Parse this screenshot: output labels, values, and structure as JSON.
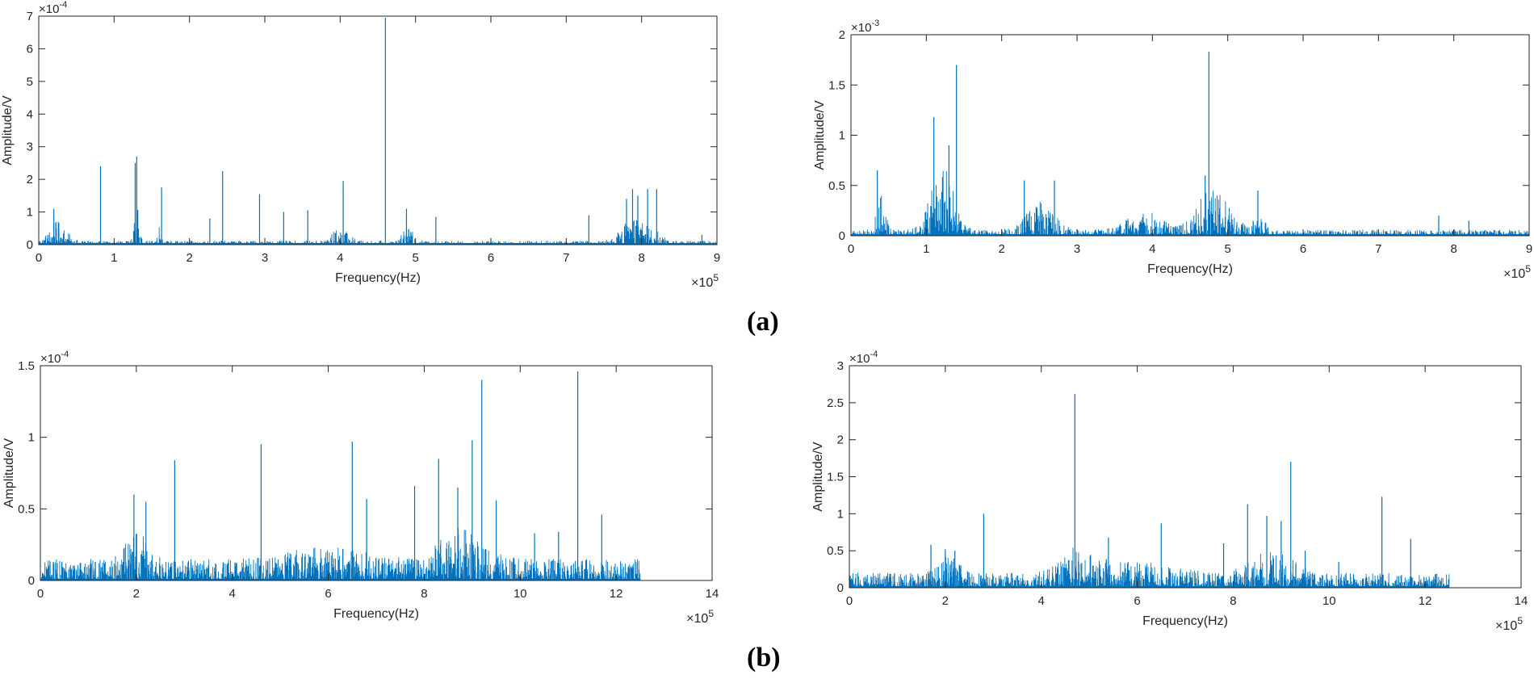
{
  "figure": {
    "label_a": "(a)",
    "label_b": "(b)"
  },
  "chart_data": [
    {
      "id": "a-left",
      "type": "line",
      "xlabel": "Frequency(Hz)",
      "ylabel": "Amplitude/V",
      "xlim": [
        0,
        9
      ],
      "ylim": [
        0,
        7
      ],
      "xticks": [
        0,
        1,
        2,
        3,
        4,
        5,
        6,
        7,
        8,
        9
      ],
      "yticks": [
        0,
        1,
        2,
        3,
        4,
        5,
        6,
        7
      ],
      "x_multiplier": "×10",
      "x_exponent": "5",
      "y_multiplier": "×10",
      "y_exponent": "-4",
      "color": "#0072BD",
      "noise_level": 0.12,
      "noise_extent": 9,
      "bumps": [
        [
          0.25,
          0.6,
          0.15
        ],
        [
          1.3,
          1.2,
          0.04
        ],
        [
          1.6,
          0.5,
          0.04
        ],
        [
          4.0,
          0.4,
          0.15
        ],
        [
          4.9,
          0.4,
          0.1
        ],
        [
          7.9,
          0.8,
          0.2
        ],
        [
          8.2,
          0.4,
          0.1
        ]
      ],
      "peaks": [
        [
          0.2,
          1.1
        ],
        [
          0.82,
          2.4
        ],
        [
          1.28,
          2.5
        ],
        [
          1.3,
          2.7
        ],
        [
          1.63,
          1.75
        ],
        [
          2.27,
          0.8
        ],
        [
          2.44,
          2.25
        ],
        [
          2.93,
          1.55
        ],
        [
          3.25,
          1.0
        ],
        [
          3.57,
          1.05
        ],
        [
          4.04,
          1.95
        ],
        [
          4.6,
          6.95
        ],
        [
          4.88,
          1.1
        ],
        [
          5.27,
          0.85
        ],
        [
          7.3,
          0.9
        ],
        [
          7.8,
          1.4
        ],
        [
          7.88,
          1.7
        ],
        [
          7.95,
          1.5
        ],
        [
          8.08,
          1.7
        ],
        [
          8.2,
          1.7
        ],
        [
          8.8,
          0.3
        ]
      ]
    },
    {
      "id": "a-right",
      "type": "line",
      "xlabel": "Frequency(Hz)",
      "ylabel": "Amplitude/V",
      "xlim": [
        0,
        9
      ],
      "ylim": [
        0,
        2
      ],
      "xticks": [
        0,
        1,
        2,
        3,
        4,
        5,
        6,
        7,
        8,
        9
      ],
      "yticks": [
        0,
        0.5,
        1,
        1.5,
        2
      ],
      "x_multiplier": "×10",
      "x_exponent": "5",
      "y_multiplier": "×10",
      "y_exponent": "-3",
      "color": "#0072BD",
      "noise_level": 0.06,
      "noise_extent": 9,
      "bumps": [
        [
          0.4,
          0.35,
          0.08
        ],
        [
          1.2,
          0.7,
          0.2
        ],
        [
          2.5,
          0.3,
          0.25
        ],
        [
          3.9,
          0.2,
          0.3
        ],
        [
          4.8,
          0.4,
          0.3
        ],
        [
          5.4,
          0.2,
          0.1
        ]
      ],
      "peaks": [
        [
          0.35,
          0.65
        ],
        [
          1.1,
          1.18
        ],
        [
          1.3,
          0.9
        ],
        [
          1.4,
          1.7
        ],
        [
          2.3,
          0.55
        ],
        [
          2.7,
          0.55
        ],
        [
          4.7,
          0.6
        ],
        [
          4.75,
          1.83
        ],
        [
          5.4,
          0.45
        ],
        [
          7.8,
          0.2
        ],
        [
          8.2,
          0.15
        ]
      ]
    },
    {
      "id": "b-left",
      "type": "line",
      "xlabel": "Frequency(Hz)",
      "ylabel": "Amplitude/V",
      "xlim": [
        0,
        14
      ],
      "ylim": [
        0,
        1.5
      ],
      "xticks": [
        0,
        2,
        4,
        6,
        8,
        10,
        12,
        14
      ],
      "yticks": [
        0,
        0.5,
        1,
        1.5
      ],
      "ytick_labels": [
        "0",
        "0.5",
        "1",
        "1.5"
      ],
      "x_multiplier": "×10",
      "x_exponent": "5",
      "y_multiplier": "×10",
      "y_exponent": "-4",
      "color": "#0072BD",
      "noise_level": 0.15,
      "noise_extent": 12.5,
      "bumps": [
        [
          2.0,
          0.2,
          0.3
        ],
        [
          6.0,
          0.1,
          1.0
        ],
        [
          8.8,
          0.25,
          0.6
        ]
      ],
      "peaks": [
        [
          1.95,
          0.6
        ],
        [
          2.2,
          0.55
        ],
        [
          2.8,
          0.84
        ],
        [
          4.6,
          0.95
        ],
        [
          6.5,
          0.97
        ],
        [
          6.8,
          0.57
        ],
        [
          7.8,
          0.66
        ],
        [
          8.3,
          0.85
        ],
        [
          8.7,
          0.65
        ],
        [
          9.0,
          0.98
        ],
        [
          9.2,
          1.4
        ],
        [
          9.5,
          0.56
        ],
        [
          10.3,
          0.33
        ],
        [
          10.8,
          0.34
        ],
        [
          11.2,
          1.46
        ],
        [
          11.7,
          0.46
        ]
      ]
    },
    {
      "id": "b-right",
      "type": "line",
      "xlabel": "Frequency(Hz)",
      "ylabel": "Amplitude/V",
      "xlim": [
        0,
        14
      ],
      "ylim": [
        0,
        3
      ],
      "xticks": [
        0,
        2,
        4,
        6,
        8,
        10,
        12,
        14
      ],
      "yticks": [
        0,
        0.5,
        1,
        1.5,
        2,
        2.5,
        3
      ],
      "x_multiplier": "×10",
      "x_exponent": "5",
      "y_multiplier": "×10",
      "y_exponent": "-4",
      "color": "#0072BD",
      "noise_level": 0.2,
      "noise_extent": 12.5,
      "bumps": [
        [
          2.1,
          0.25,
          0.3
        ],
        [
          4.8,
          0.35,
          0.5
        ],
        [
          6.0,
          0.15,
          1.0
        ],
        [
          8.8,
          0.3,
          0.6
        ]
      ],
      "peaks": [
        [
          1.7,
          0.58
        ],
        [
          2.0,
          0.52
        ],
        [
          2.2,
          0.5
        ],
        [
          2.8,
          1.0
        ],
        [
          4.7,
          2.62
        ],
        [
          5.4,
          0.68
        ],
        [
          6.5,
          0.87
        ],
        [
          7.8,
          0.6
        ],
        [
          8.3,
          1.13
        ],
        [
          8.7,
          0.97
        ],
        [
          9.0,
          0.9
        ],
        [
          9.2,
          1.7
        ],
        [
          9.5,
          0.5
        ],
        [
          10.2,
          0.35
        ],
        [
          11.1,
          1.23
        ],
        [
          11.7,
          0.66
        ]
      ]
    }
  ]
}
